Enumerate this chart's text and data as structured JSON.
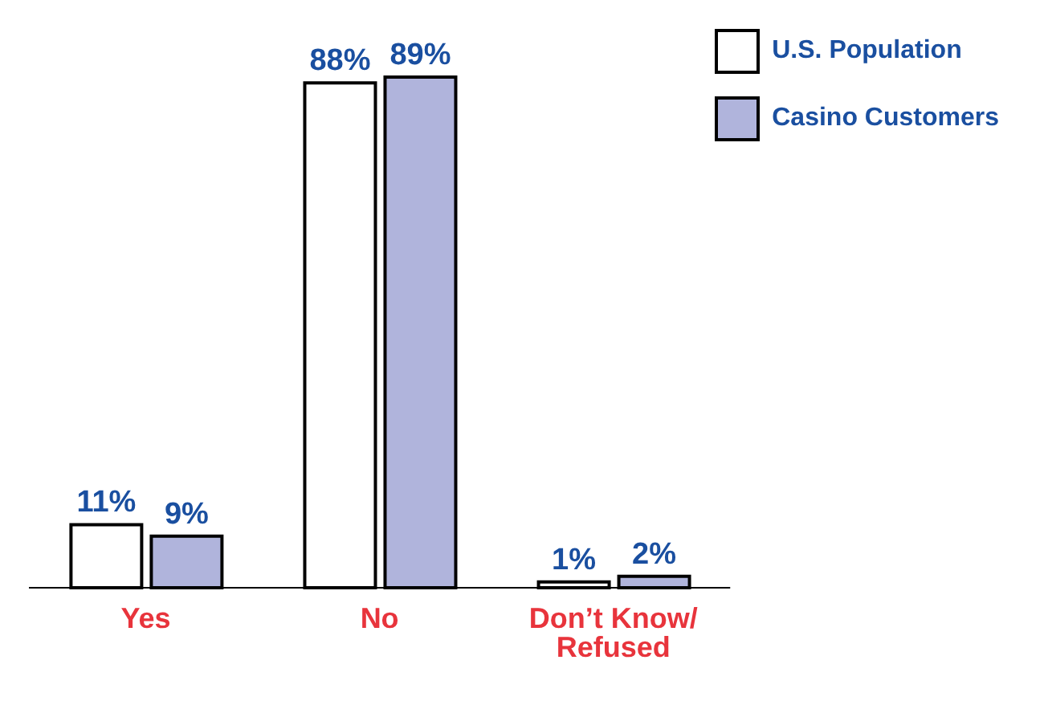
{
  "chart_data": {
    "type": "bar",
    "categories": [
      "Yes",
      "No",
      "Don’t Know/ Refused"
    ],
    "series": [
      {
        "name": "U.S. Population",
        "color": "#ffffff",
        "values": [
          11,
          88,
          1
        ],
        "value_labels": [
          "11%",
          "88%",
          "1%"
        ]
      },
      {
        "name": "Casino Customers",
        "color": "#b0b4dc",
        "values": [
          9,
          89,
          2
        ],
        "value_labels": [
          "9%",
          "89%",
          "2%"
        ]
      }
    ],
    "legend": "top right",
    "grid": false
  }
}
